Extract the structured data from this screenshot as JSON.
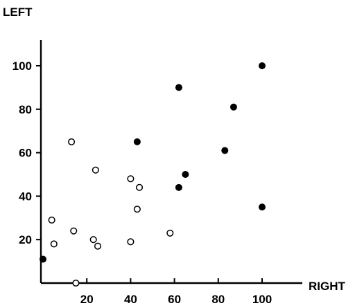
{
  "chart_data": {
    "type": "scatter",
    "title": "",
    "xlabel": "RIGHT",
    "ylabel": "LEFT",
    "xlim": [
      -1,
      102
    ],
    "ylim": [
      0,
      112
    ],
    "xticks": [
      20,
      40,
      60,
      80,
      100
    ],
    "xtick_labels": [
      "20",
      "40",
      "60",
      "80",
      "100"
    ],
    "yticks": [
      20,
      40,
      60,
      80,
      100
    ],
    "ytick_labels": [
      "20",
      "40",
      "60",
      "80",
      "100"
    ],
    "grid": false,
    "legend": "none",
    "series": [
      {
        "marker": "open-circle",
        "color": "#000000",
        "points": [
          {
            "x": 13,
            "y": 65
          },
          {
            "x": 24,
            "y": 52
          },
          {
            "x": 40,
            "y": 48
          },
          {
            "x": 44,
            "y": 44
          },
          {
            "x": 43,
            "y": 34
          },
          {
            "x": 4,
            "y": 29
          },
          {
            "x": 14,
            "y": 24
          },
          {
            "x": 58,
            "y": 23
          },
          {
            "x": 23,
            "y": 20
          },
          {
            "x": 40,
            "y": 19
          },
          {
            "x": 5,
            "y": 18
          },
          {
            "x": 25,
            "y": 17
          },
          {
            "x": 15,
            "y": 0
          }
        ]
      },
      {
        "marker": "filled-circle",
        "color": "#000000",
        "points": [
          {
            "x": 100,
            "y": 100
          },
          {
            "x": 62,
            "y": 90
          },
          {
            "x": 87,
            "y": 81
          },
          {
            "x": 43,
            "y": 65
          },
          {
            "x": 83,
            "y": 61
          },
          {
            "x": 65,
            "y": 50
          },
          {
            "x": 62,
            "y": 44
          },
          {
            "x": 100,
            "y": 35
          },
          {
            "x": 0,
            "y": 11
          }
        ]
      }
    ]
  }
}
